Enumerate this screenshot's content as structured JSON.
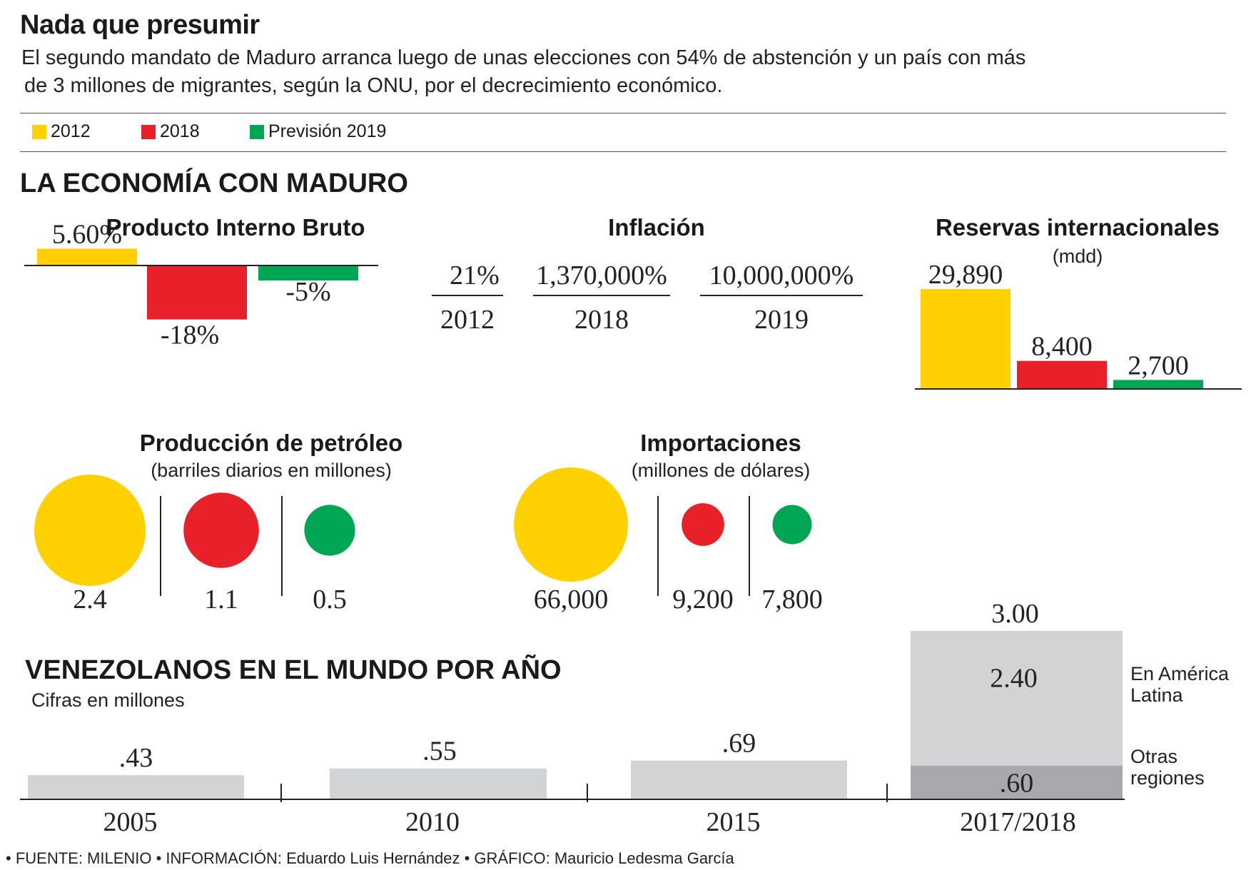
{
  "header": {
    "title": "Nada que presumir",
    "subtitle_line1": "El segundo mandato de Maduro arranca luego de unas elecciones con 54% de abstención y un país con más",
    "subtitle_line2": "de 3 millones de migrantes, según la ONU, por el decrecimiento económico."
  },
  "legend": {
    "items": [
      {
        "label": "2012",
        "color": "#FFD100"
      },
      {
        "label": "2018",
        "color": "#E8202A"
      },
      {
        "label": "Previsión 2019",
        "color": "#00A651"
      }
    ]
  },
  "section_economy": {
    "title": "LA ECONOMÍA CON MADURO"
  },
  "chart_data": [
    {
      "type": "bar",
      "title": "Producto Interno Bruto",
      "categories": [
        "2012",
        "2018",
        "Previsión 2019"
      ],
      "values": [
        5.6,
        -18,
        -5
      ],
      "value_labels": [
        "5.60%",
        "-18%",
        "-5%"
      ],
      "colors": [
        "#FFD100",
        "#E8202A",
        "#00A651"
      ],
      "ylim": [
        -18,
        5.6
      ]
    },
    {
      "type": "table",
      "title": "Inflación",
      "columns": [
        "2012",
        "2018",
        "2019"
      ],
      "values": [
        21,
        1370000,
        10000000
      ],
      "value_labels": [
        "21%",
        "1,370,000%",
        "10,000,000%"
      ]
    },
    {
      "type": "bar",
      "title": "Reservas internacionales",
      "subtitle": "(mdd)",
      "categories": [
        "2012",
        "2018",
        "Previsión 2019"
      ],
      "values": [
        29890,
        8400,
        2700
      ],
      "value_labels": [
        "29,890",
        "8,400",
        "2,700"
      ],
      "colors": [
        "#FFD100",
        "#E8202A",
        "#00A651"
      ],
      "ylim": [
        0,
        29890
      ]
    },
    {
      "type": "scatter",
      "title": "Producción de petróleo",
      "subtitle": "(barriles diarios en millones)",
      "categories": [
        "2012",
        "2018",
        "Previsión 2019"
      ],
      "values": [
        2.4,
        1.1,
        0.5
      ],
      "value_labels": [
        "2.4",
        "1.1",
        "0.5"
      ],
      "colors": [
        "#FFD100",
        "#E8202A",
        "#00A651"
      ]
    },
    {
      "type": "scatter",
      "title": "Importaciones",
      "subtitle": "(millones de dólares)",
      "categories": [
        "2012",
        "2018",
        "Previsión 2019"
      ],
      "values": [
        66000,
        9200,
        7800
      ],
      "value_labels": [
        "66,000",
        "9,200",
        "7,800"
      ],
      "colors": [
        "#FFD100",
        "#E8202A",
        "#00A651"
      ]
    },
    {
      "type": "bar",
      "title": "VENEZOLANOS EN EL MUNDO POR AÑO",
      "subtitle": "Cifras en millones",
      "categories": [
        "2005",
        "2010",
        "2015",
        "2017/2018"
      ],
      "values": [
        0.43,
        0.55,
        0.69,
        3.0
      ],
      "value_labels": [
        ".43",
        ".55",
        ".69",
        "3.00"
      ],
      "series": [
        {
          "name": "Otras regiones",
          "values": [
            null,
            null,
            null,
            0.6
          ],
          "value_label": ".60",
          "color": "#A7A9AC"
        },
        {
          "name": "En América Latina",
          "values": [
            null,
            null,
            null,
            2.4
          ],
          "value_label": "2.40",
          "color": "#D1D3D4"
        }
      ],
      "ylim": [
        0,
        3.0
      ]
    }
  ],
  "footer": {
    "text": "• FUENTE: MILENIO • INFORMACIÓN: Eduardo Luis Hernández  • GRÁFICO: Mauricio Ledesma García"
  }
}
